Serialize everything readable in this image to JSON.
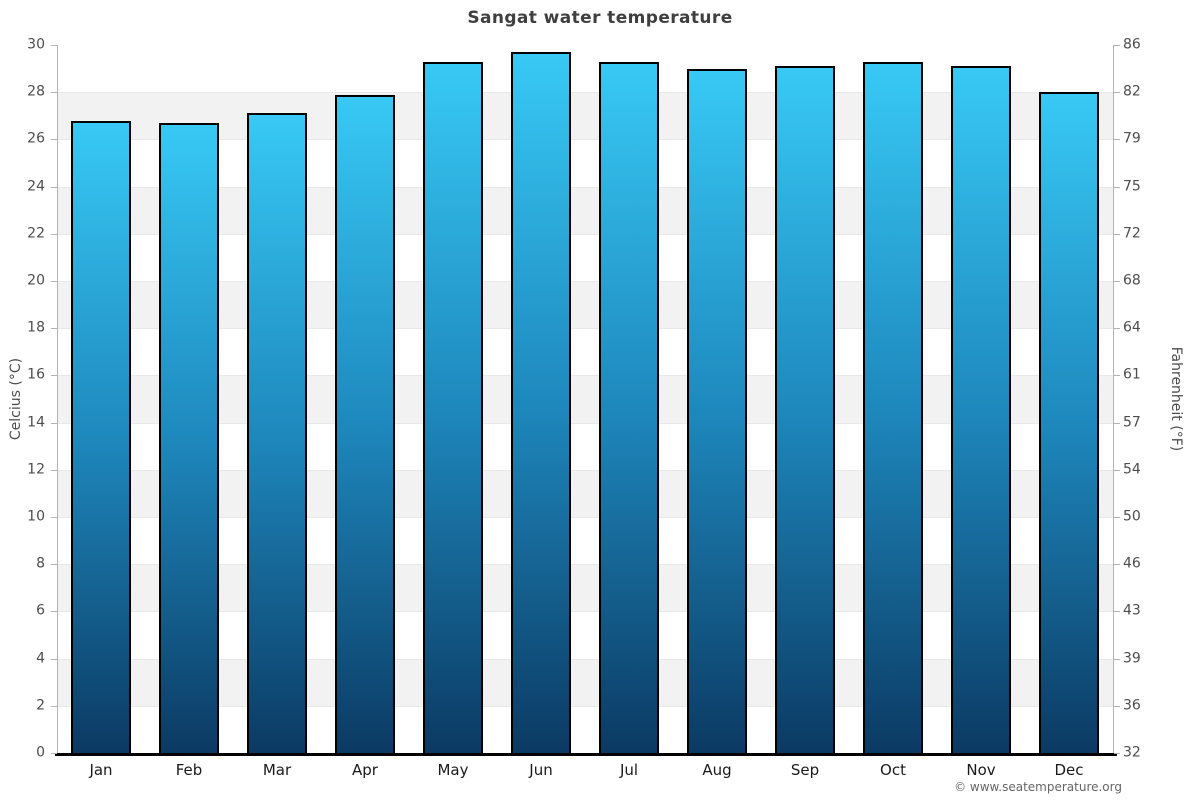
{
  "page": {
    "title": "Sangat water temperature",
    "copyright": "© www.seatemperature.org"
  },
  "chart_data": {
    "type": "bar",
    "title": "Sangat water temperature",
    "categories": [
      "Jan",
      "Feb",
      "Mar",
      "Apr",
      "May",
      "Jun",
      "Jul",
      "Aug",
      "Sep",
      "Oct",
      "Nov",
      "Dec"
    ],
    "series": [
      {
        "name": "Water temperature",
        "unit": "°C",
        "values": [
          26.8,
          26.7,
          27.1,
          27.9,
          29.3,
          29.7,
          29.3,
          29.0,
          29.1,
          29.3,
          29.1,
          28.0
        ]
      }
    ],
    "ylabel_left": "Celcius (°C)",
    "ylabel_right": "Fahrenheit (°F)",
    "ylim": [
      0,
      30
    ],
    "yticks_celsius": [
      30,
      28,
      26,
      24,
      22,
      20,
      18,
      16,
      14,
      12,
      10,
      8,
      6,
      4,
      2,
      0
    ],
    "yticks_fahrenheit": [
      86,
      82,
      79,
      75,
      72,
      68,
      64,
      61,
      57,
      54,
      50,
      46,
      43,
      39,
      36,
      32
    ],
    "grid": "alternating horizontal bands every 2°C, white/gray, starting white below 30",
    "legend": "none",
    "colors": {
      "bar_top": "#38c9f4",
      "bar_mid": "#1e88bd",
      "bar_bottom": "#0b3a63",
      "bar_border": "#000000",
      "band_gray": "#f2f2f2",
      "band_white": "#ffffff",
      "grid_line": "#e8e8e8",
      "axis_line": "#b3b3b3",
      "bottom_axis": "#000000",
      "title_text": "#3f3f3f",
      "tick_text": "#4d4d4d",
      "month_text": "#1a1a1a",
      "copyright_text": "#666666"
    }
  }
}
